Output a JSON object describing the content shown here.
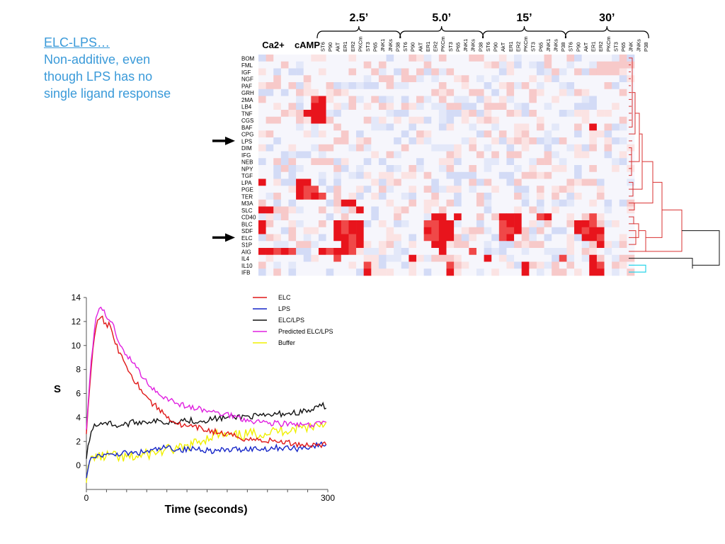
{
  "caption": {
    "title": "ELC-LPS…",
    "body": "Non-additive, even though LPS has no single ligand response"
  },
  "colors": {
    "caption": "#3a9ad9",
    "heat_high": "#e8141c",
    "heat_low": "#c9d2f5",
    "dendrogram_main": "#d93030",
    "dendrogram_root": "#111111",
    "dendrogram_il10": "#2ad4e8",
    "arrow": "#000000"
  },
  "heatmap": {
    "top_groups": [
      "Ca2+",
      "cAMP"
    ],
    "time_groups": [
      "2.5’",
      "5.0’",
      "15’",
      "30’"
    ],
    "columns": [
      [
        "ST6",
        "P90",
        "AkT",
        "ER1",
        "ER2",
        "PKCm",
        "ST3",
        "P65",
        "JNK1",
        "JNKs",
        "P38"
      ],
      [
        "ST6",
        "P90",
        "AkT",
        "ER1",
        "ER2",
        "PKCm",
        "ST3",
        "P65",
        "JNK1",
        "JNKs",
        "P38"
      ],
      [
        "ST6",
        "P90",
        "AkT",
        "ER1",
        "ER2",
        "PKCm",
        "ST3",
        "P65",
        "JNK1",
        "JNKs",
        "P38"
      ],
      [
        "ST6",
        "P90",
        "AkT",
        "ER1",
        "ER2",
        "PKCm",
        "ST3",
        "P65",
        "JNK",
        "JNKs",
        "P38"
      ]
    ],
    "rows": [
      "BOM",
      "FML",
      "IGF",
      "NGF",
      "PAF",
      "GRH",
      "2MA",
      "LB4",
      "TNF",
      "CGS",
      "BAF",
      "CPG",
      "LPS",
      "DIM",
      "IFG",
      "NEB",
      "NPY",
      "TGF",
      "LPA",
      "PGE",
      "TER",
      "M3A",
      "SLC",
      "CD40",
      "BLC",
      "SDF",
      "ELC",
      "S1P",
      "AIG",
      "IL4",
      "IL10",
      "IFB"
    ],
    "arrow_rows": [
      "LPS",
      "ELC"
    ]
  },
  "chart_data": {
    "type": "line",
    "title": "",
    "xlabel": "Time (seconds)",
    "ylabel": "S",
    "xlim": [
      0,
      300
    ],
    "ylim": [
      -2,
      14
    ],
    "x_ticks_labeled": [
      0,
      300
    ],
    "y_ticks": [
      0,
      2,
      4,
      6,
      8,
      10,
      12,
      14
    ],
    "grid": false,
    "legend_position": "top-right",
    "series": [
      {
        "name": "ELC",
        "color": "#e01818",
        "x": [
          0,
          5,
          10,
          15,
          20,
          25,
          30,
          35,
          40,
          50,
          60,
          70,
          80,
          90,
          100,
          110,
          120,
          140,
          160,
          180,
          200,
          220,
          240,
          260,
          280,
          300
        ],
        "y": [
          2.6,
          7.5,
          10.8,
          12.2,
          12.3,
          11.5,
          11.8,
          10.5,
          9.6,
          8.3,
          7.1,
          6.2,
          5.3,
          4.7,
          4.1,
          3.6,
          3.3,
          3.1,
          2.8,
          2.5,
          2.2,
          2.1,
          2.0,
          1.8,
          1.7,
          1.8
        ]
      },
      {
        "name": "LPS",
        "color": "#1525c8",
        "x": [
          0,
          5,
          10,
          20,
          30,
          40,
          60,
          80,
          100,
          120,
          140,
          160,
          180,
          200,
          220,
          240,
          260,
          280,
          300
        ],
        "y": [
          -0.8,
          0.5,
          0.6,
          0.9,
          0.8,
          1.0,
          1.0,
          1.2,
          1.5,
          1.3,
          1.4,
          1.2,
          1.3,
          1.4,
          1.4,
          1.5,
          1.4,
          1.6,
          1.8
        ]
      },
      {
        "name": "ELC/LPS",
        "color": "#111111",
        "x": [
          0,
          5,
          10,
          15,
          20,
          30,
          40,
          60,
          80,
          100,
          120,
          140,
          160,
          180,
          200,
          220,
          240,
          260,
          280,
          295,
          300
        ],
        "y": [
          0.6,
          2.7,
          3.3,
          3.5,
          3.6,
          3.5,
          3.3,
          3.6,
          3.7,
          3.6,
          3.8,
          3.7,
          3.9,
          4.0,
          4.1,
          4.1,
          4.3,
          4.4,
          4.6,
          5.0,
          4.8
        ]
      },
      {
        "name": "Predicted ELC/LPS",
        "color": "#e020e0",
        "x": [
          0,
          5,
          10,
          15,
          20,
          25,
          30,
          35,
          40,
          50,
          60,
          70,
          80,
          90,
          100,
          110,
          120,
          140,
          160,
          180,
          200,
          220,
          240,
          260,
          280,
          300
        ],
        "y": [
          2.8,
          8.0,
          11.5,
          12.9,
          13.0,
          12.4,
          12.1,
          11.4,
          10.4,
          9.2,
          8.4,
          7.4,
          6.6,
          6.0,
          5.6,
          5.3,
          5.0,
          4.7,
          4.4,
          4.2,
          3.8,
          3.6,
          3.5,
          3.4,
          3.3,
          3.7
        ]
      },
      {
        "name": "Buffer",
        "color": "#f0f000",
        "x": [
          0,
          5,
          10,
          20,
          30,
          40,
          60,
          80,
          100,
          120,
          140,
          160,
          180,
          200,
          220,
          240,
          260,
          280,
          300
        ],
        "y": [
          -1.0,
          0.4,
          0.8,
          0.7,
          0.9,
          0.6,
          0.7,
          1.0,
          1.3,
          1.4,
          2.0,
          2.6,
          2.4,
          2.6,
          2.7,
          2.9,
          3.1,
          3.3,
          3.6
        ]
      }
    ]
  }
}
